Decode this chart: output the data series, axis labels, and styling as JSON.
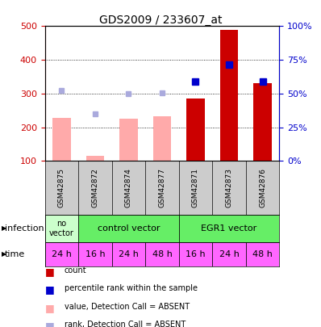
{
  "title": "GDS2009 / 233607_at",
  "samples": [
    "GSM42875",
    "GSM42872",
    "GSM42874",
    "GSM42877",
    "GSM42871",
    "GSM42873",
    "GSM42876"
  ],
  "count_values": [
    null,
    null,
    null,
    null,
    285,
    490,
    330
  ],
  "count_absent": [
    228,
    115,
    225,
    232,
    null,
    null,
    null
  ],
  "rank_values": [
    null,
    null,
    null,
    null,
    335,
    385,
    335
  ],
  "rank_absent": [
    310,
    240,
    300,
    302,
    null,
    null,
    null
  ],
  "ylim_left": [
    100,
    500
  ],
  "ylim_right": [
    0,
    100
  ],
  "yticks_left": [
    100,
    200,
    300,
    400,
    500
  ],
  "yticks_right": [
    0,
    25,
    50,
    75,
    100
  ],
  "ytick_labels_right": [
    "0%",
    "25%",
    "50%",
    "75%",
    "100%"
  ],
  "time_labels": [
    "24 h",
    "16 h",
    "24 h",
    "48 h",
    "16 h",
    "24 h",
    "48 h"
  ],
  "time_color": "#ff66ff",
  "no_vec_color": "#ccffcc",
  "vec_color": "#66ee66",
  "bar_color_present": "#cc0000",
  "bar_color_absent": "#ffaaaa",
  "dot_color_present": "#0000cc",
  "dot_color_absent": "#aaaadd",
  "sample_bg": "#cccccc",
  "legend": [
    {
      "color": "#cc0000",
      "label": "count"
    },
    {
      "color": "#0000cc",
      "label": "percentile rank within the sample"
    },
    {
      "color": "#ffaaaa",
      "label": "value, Detection Call = ABSENT"
    },
    {
      "color": "#aaaadd",
      "label": "rank, Detection Call = ABSENT"
    }
  ],
  "background_color": "white",
  "left_axis_color": "#cc0000",
  "right_axis_color": "#0000cc"
}
